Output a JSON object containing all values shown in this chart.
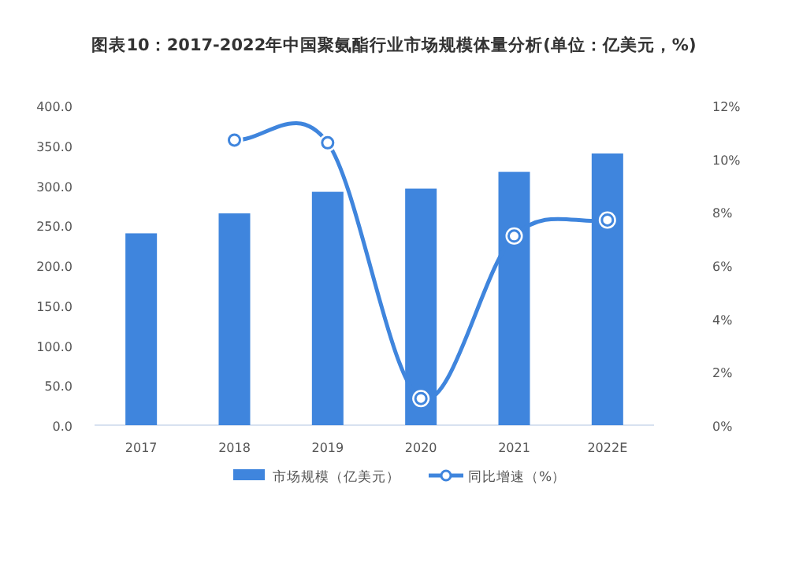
{
  "chart_data": {
    "type": "bar",
    "title": "图表10：2017-2022年中国聚氨酯行业市场规模体量分析(单位：亿美元，%)",
    "categories": [
      "2017",
      "2018",
      "2019",
      "2020",
      "2021",
      "2022E"
    ],
    "series": [
      {
        "name": "市场规模（亿美元）",
        "color": "#3f85dd",
        "values": [
          240,
          265,
          292,
          296,
          317,
          340
        ]
      },
      {
        "name": "同比增速（%）",
        "color": "#3f85dd",
        "type": "line",
        "axis": "y2",
        "marker": "circle",
        "values": [
          null,
          10.7,
          10.6,
          1.0,
          7.1,
          7.7
        ]
      }
    ],
    "ylim": [
      0,
      400
    ],
    "yticks": [
      {
        "value": 0,
        "label": "0.0"
      },
      {
        "value": 50,
        "label": "50.0"
      },
      {
        "value": 100,
        "label": "100.0"
      },
      {
        "value": 150,
        "label": "150.0"
      },
      {
        "value": 200,
        "label": "200.0"
      },
      {
        "value": 250,
        "label": "250.0"
      },
      {
        "value": 300,
        "label": "300.0"
      },
      {
        "value": 350,
        "label": "350.0"
      },
      {
        "value": 400,
        "label": "400.0"
      }
    ],
    "y2lim": [
      0,
      12
    ],
    "y2ticks": [
      {
        "value": 0,
        "label": "0%"
      },
      {
        "value": 2,
        "label": "2%"
      },
      {
        "value": 4,
        "label": "4%"
      },
      {
        "value": 6,
        "label": "6%"
      },
      {
        "value": 8,
        "label": "8%"
      },
      {
        "value": 10,
        "label": "10%"
      },
      {
        "value": 12,
        "label": "12%"
      }
    ],
    "legend": "bottom",
    "grid": false
  }
}
